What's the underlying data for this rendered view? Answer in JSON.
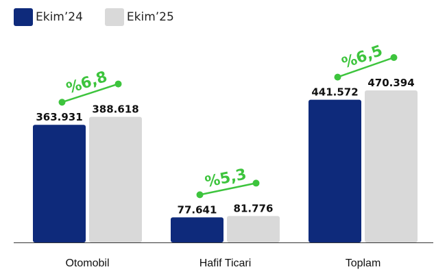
{
  "chart_data": {
    "type": "bar",
    "categories": [
      "Otomobil",
      "Hafif Ticari",
      "Toplam"
    ],
    "series": [
      {
        "name": "Ekim’24",
        "values": [
          363931,
          77641,
          441572
        ],
        "labels": [
          "363.931",
          "77.641",
          "441.572"
        ],
        "color": "#0e2a7b"
      },
      {
        "name": "Ekim’25",
        "values": [
          388618,
          81776,
          470394
        ],
        "labels": [
          "388.618",
          "81.776",
          "470.394"
        ],
        "color": "#d9d9d9"
      }
    ],
    "growth": [
      "%6,8",
      "%5,3",
      "%6,5"
    ],
    "growth_color": "#3dc43d",
    "legend_position": "top-left",
    "grid": false,
    "ylim": [
      0,
      500000
    ]
  }
}
